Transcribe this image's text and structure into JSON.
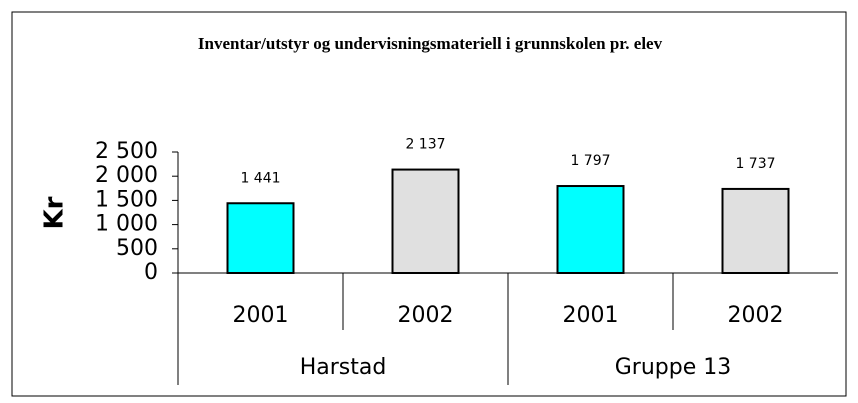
{
  "chart_data": {
    "type": "bar",
    "title": "Inventar/utstyr og undervisningsmateriell i grunnskolen pr. elev",
    "ylabel": "Kr",
    "categories": [
      "2001",
      "2002",
      "2001",
      "2002"
    ],
    "groups": [
      "Harstad",
      "Gruppe 13"
    ],
    "values": [
      1441,
      2137,
      1797,
      1737
    ],
    "value_labels": [
      "1 441",
      "2 137",
      "1 797",
      "1 737"
    ],
    "colors": [
      "#00ffff",
      "#e0e0e0",
      "#00ffff",
      "#e0e0e0"
    ],
    "ylim": [
      0,
      2500
    ],
    "yticks": [
      0,
      500,
      {
        "value": 1000,
        "label": "1 000"
      },
      {
        "value": 1500,
        "label": "1 500"
      },
      {
        "value": 2000,
        "label": "2 000"
      },
      {
        "value": 2500,
        "label": "2 500"
      }
    ],
    "grid": false
  }
}
